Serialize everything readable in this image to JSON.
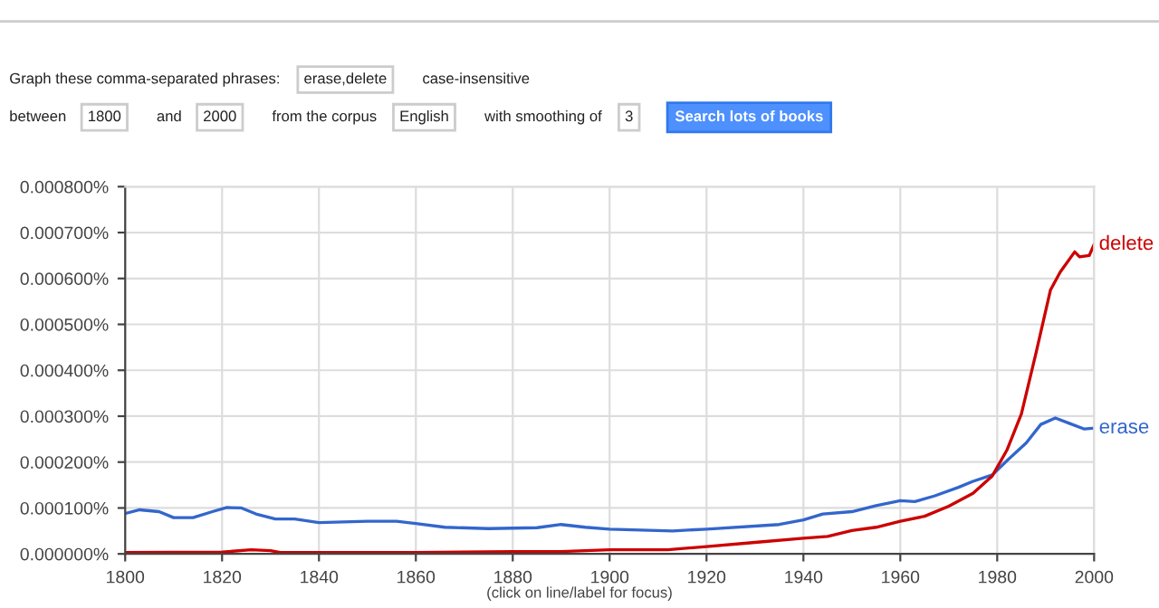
{
  "chart_data": {
    "type": "line",
    "annotations": [
      "Graph these comma-separated phrases:",
      "erase,delete",
      "case-insensitive",
      "between",
      "1800",
      "and",
      "2000",
      "from the corpus",
      "English",
      "with smoothing of",
      "3",
      "Search lots of books",
      "(click on line/label for focus)"
    ],
    "series": [
      {
        "name": "erase",
        "color": "#3366cc",
        "x": [
          1800,
          1803,
          1807,
          1810,
          1814,
          1818,
          1821,
          1824,
          1827,
          1831,
          1835,
          1840,
          1850,
          1856,
          1860,
          1866,
          1875,
          1885,
          1890,
          1895,
          1900,
          1913,
          1920,
          1935,
          1940,
          1944,
          1950,
          1955,
          1960,
          1963,
          1967,
          1972,
          1975,
          1979,
          1982,
          1986,
          1989,
          1992,
          1995,
          1998,
          2000
        ],
        "values": [
          8.8e-05,
          9.6e-05,
          9.2e-05,
          7.9e-05,
          7.9e-05,
          9.2e-05,
          0.000101,
          0.0001,
          8.7e-05,
          7.6e-05,
          7.6e-05,
          6.8e-05,
          7.1e-05,
          7.1e-05,
          6.6e-05,
          5.8e-05,
          5.5e-05,
          5.7e-05,
          6.4e-05,
          5.8e-05,
          5.4e-05,
          5e-05,
          5.4e-05,
          6.4e-05,
          7.4e-05,
          8.7e-05,
          9.2e-05,
          0.000105,
          0.000116,
          0.000114,
          0.000126,
          0.000145,
          0.000158,
          0.000172,
          0.000203,
          0.000242,
          0.000282,
          0.000296,
          0.000284,
          0.000272,
          0.000274
        ]
      },
      {
        "name": "delete",
        "color": "#cc0000",
        "x": [
          1800,
          1820,
          1826,
          1830,
          1832,
          1860,
          1880,
          1890,
          1900,
          1912,
          1920,
          1930,
          1940,
          1945,
          1950,
          1955,
          1960,
          1965,
          1970,
          1975,
          1979,
          1982,
          1985,
          1988,
          1991,
          1993,
          1996,
          1997,
          1999,
          2000
        ],
        "values": [
          3e-06,
          4e-06,
          9e-06,
          7e-06,
          3e-06,
          3e-06,
          5e-06,
          5e-06,
          9e-06,
          9e-06,
          1.6e-05,
          2.5e-05,
          3.4e-05,
          3.8e-05,
          5.1e-05,
          5.8e-05,
          7.1e-05,
          8.2e-05,
          0.000104,
          0.000132,
          0.00017,
          0.000226,
          0.000305,
          0.000437,
          0.000575,
          0.000614,
          0.000658,
          0.000647,
          0.00065,
          0.000674
        ]
      }
    ],
    "xlim": [
      1800,
      2000
    ],
    "xticks": [
      1800,
      1820,
      1840,
      1860,
      1880,
      1900,
      1920,
      1940,
      1960,
      1980,
      2000
    ],
    "ylim": [
      0,
      0.0008
    ],
    "yticks": [
      {
        "value": 0,
        "label": "0.000000%"
      },
      {
        "value": 0.0001,
        "label": "0.000100%"
      },
      {
        "value": 0.0002,
        "label": "0.000200%"
      },
      {
        "value": 0.0003,
        "label": "0.000300%"
      },
      {
        "value": 0.0004,
        "label": "0.000400%"
      },
      {
        "value": 0.0005,
        "label": "0.000500%"
      },
      {
        "value": 0.0006,
        "label": "0.000600%"
      },
      {
        "value": 0.0007,
        "label": "0.000700%"
      },
      {
        "value": 0.0008,
        "label": "0.000800%"
      }
    ],
    "grid": true,
    "legend": false,
    "marker": "none",
    "line_style": "solid"
  }
}
